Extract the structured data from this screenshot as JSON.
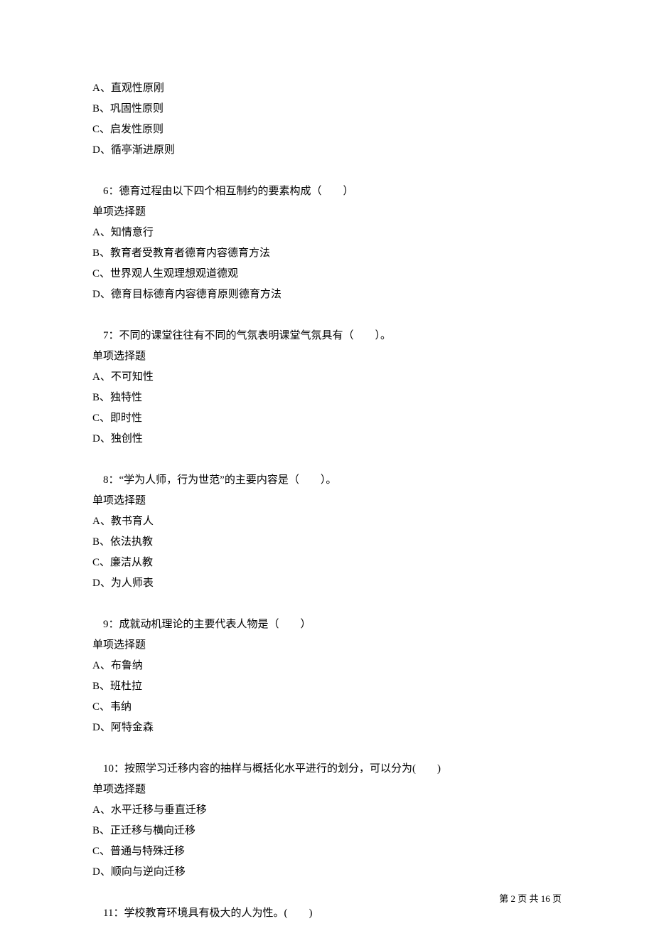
{
  "q5": {
    "optA": "A、直观性原刚",
    "optB": "B、巩固性原则",
    "optC": "C、启发性原则",
    "optD": "D、循亭渐进原则"
  },
  "q6": {
    "stem": "6：德育过程由以下四个相互制约的要素构成（　　）",
    "type": "单项选择题",
    "optA": "A、知情意行",
    "optB": "B、教育者受教育者德育内容德育方法",
    "optC": "C、世界观人生观理想观道德观",
    "optD": "D、德育目标德育内容德育原则德育方法"
  },
  "q7": {
    "stem": "7：不同的课堂往往有不同的气氛表明课堂气氛具有（　　）。",
    "type": "单项选择题",
    "optA": "A、不可知性",
    "optB": "B、独特性",
    "optC": "C、即时性",
    "optD": "D、独创性"
  },
  "q8": {
    "stem": "8：“学为人师，行为世范”的主要内容是（　　）。",
    "type": "单项选择题",
    "optA": "A、教书育人",
    "optB": "B、依法执教",
    "optC": "C、廉洁从教",
    "optD": "D、为人师表"
  },
  "q9": {
    "stem": "9：成就动机理论的主要代表人物是（　　）",
    "type": "单项选择题",
    "optA": "A、布鲁纳",
    "optB": "B、班杜拉",
    "optC": "C、韦纳",
    "optD": "D、阿特金森"
  },
  "q10": {
    "stem": "10：按照学习迁移内容的抽样与概括化水平进行的划分，可以分为(　　)",
    "type": "单项选择题",
    "optA": "A、水平迁移与垂直迁移",
    "optB": "B、正迁移与横向迁移",
    "optC": "C、普通与特殊迁移",
    "optD": "D、顺向与逆向迁移"
  },
  "q11": {
    "stem": "11：学校教育环境具有极大的人为性。(　　)"
  },
  "footer": "第 2 页 共 16 页"
}
